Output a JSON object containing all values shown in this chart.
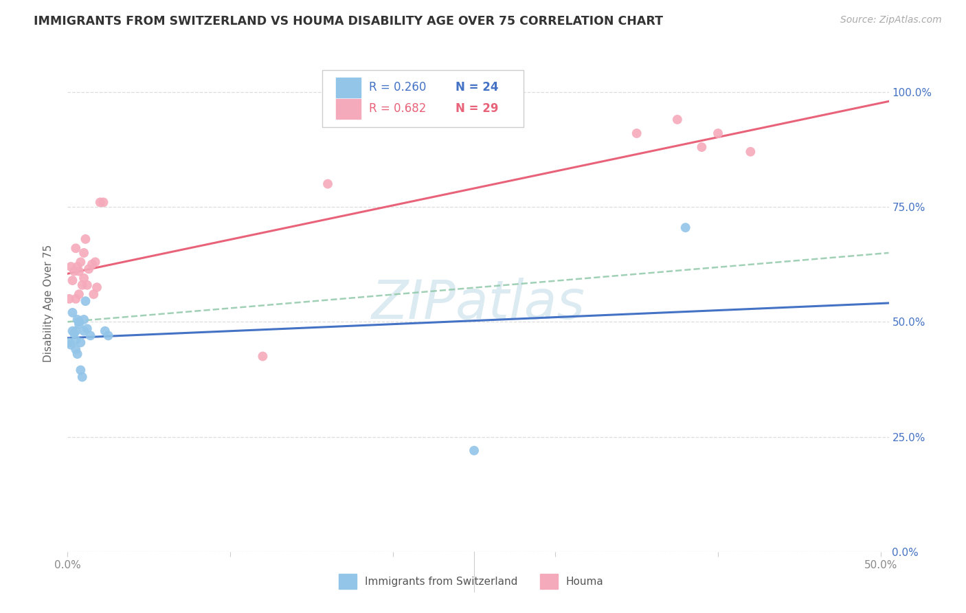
{
  "title": "IMMIGRANTS FROM SWITZERLAND VS HOUMA DISABILITY AGE OVER 75 CORRELATION CHART",
  "source": "Source: ZipAtlas.com",
  "xlabel_tick_vals": [
    0.0,
    0.1,
    0.2,
    0.3,
    0.4,
    0.5
  ],
  "xlabel_ticks_shown": [
    "0.0%",
    "",
    "",
    "",
    "",
    "50.0%"
  ],
  "ylabel_tick_vals": [
    0.0,
    0.25,
    0.5,
    0.75,
    1.0
  ],
  "right_ylabel_ticks": [
    "0.0%",
    "25.0%",
    "50.0%",
    "75.0%",
    "100.0%"
  ],
  "ylabel": "Disability Age Over 75",
  "legend_labels": [
    "Immigrants from Switzerland",
    "Houma"
  ],
  "legend_r1": "R = 0.260",
  "legend_n1": "N = 24",
  "legend_r2": "R = 0.682",
  "legend_n2": "N = 29",
  "blue_scatter_color": "#92C5E8",
  "pink_scatter_color": "#F5AABB",
  "blue_line_color": "#4472C4",
  "pink_line_color": "#E8637A",
  "dashed_line_color": "#90C8A8",
  "watermark_text": "ZIPatlas",
  "watermark_color": "#C5DCE8",
  "bg_color": "#FFFFFF",
  "grid_color": "#DDDDDD",
  "swiss_x": [
    0.001,
    0.002,
    0.003,
    0.003,
    0.004,
    0.005,
    0.005,
    0.005,
    0.006,
    0.006,
    0.007,
    0.007,
    0.008,
    0.008,
    0.009,
    0.01,
    0.01,
    0.011,
    0.012,
    0.014,
    0.023,
    0.025,
    0.25,
    0.38
  ],
  "swiss_y": [
    0.455,
    0.45,
    0.48,
    0.52,
    0.475,
    0.46,
    0.48,
    0.44,
    0.43,
    0.505,
    0.5,
    0.495,
    0.395,
    0.455,
    0.38,
    0.505,
    0.48,
    0.545,
    0.485,
    0.47,
    0.48,
    0.47,
    0.22,
    0.705
  ],
  "houma_x": [
    0.001,
    0.002,
    0.003,
    0.004,
    0.005,
    0.005,
    0.006,
    0.007,
    0.007,
    0.008,
    0.009,
    0.01,
    0.01,
    0.011,
    0.012,
    0.013,
    0.015,
    0.016,
    0.017,
    0.018,
    0.02,
    0.022,
    0.12,
    0.16,
    0.35,
    0.375,
    0.39,
    0.4,
    0.42
  ],
  "houma_y": [
    0.55,
    0.62,
    0.59,
    0.61,
    0.66,
    0.55,
    0.62,
    0.61,
    0.56,
    0.63,
    0.58,
    0.595,
    0.65,
    0.68,
    0.58,
    0.615,
    0.625,
    0.56,
    0.63,
    0.575,
    0.76,
    0.76,
    0.425,
    0.8,
    0.91,
    0.94,
    0.88,
    0.91,
    0.87
  ],
  "xlim": [
    0.0,
    0.505
  ],
  "ylim": [
    0.0,
    1.08
  ],
  "scatter_size": 100
}
